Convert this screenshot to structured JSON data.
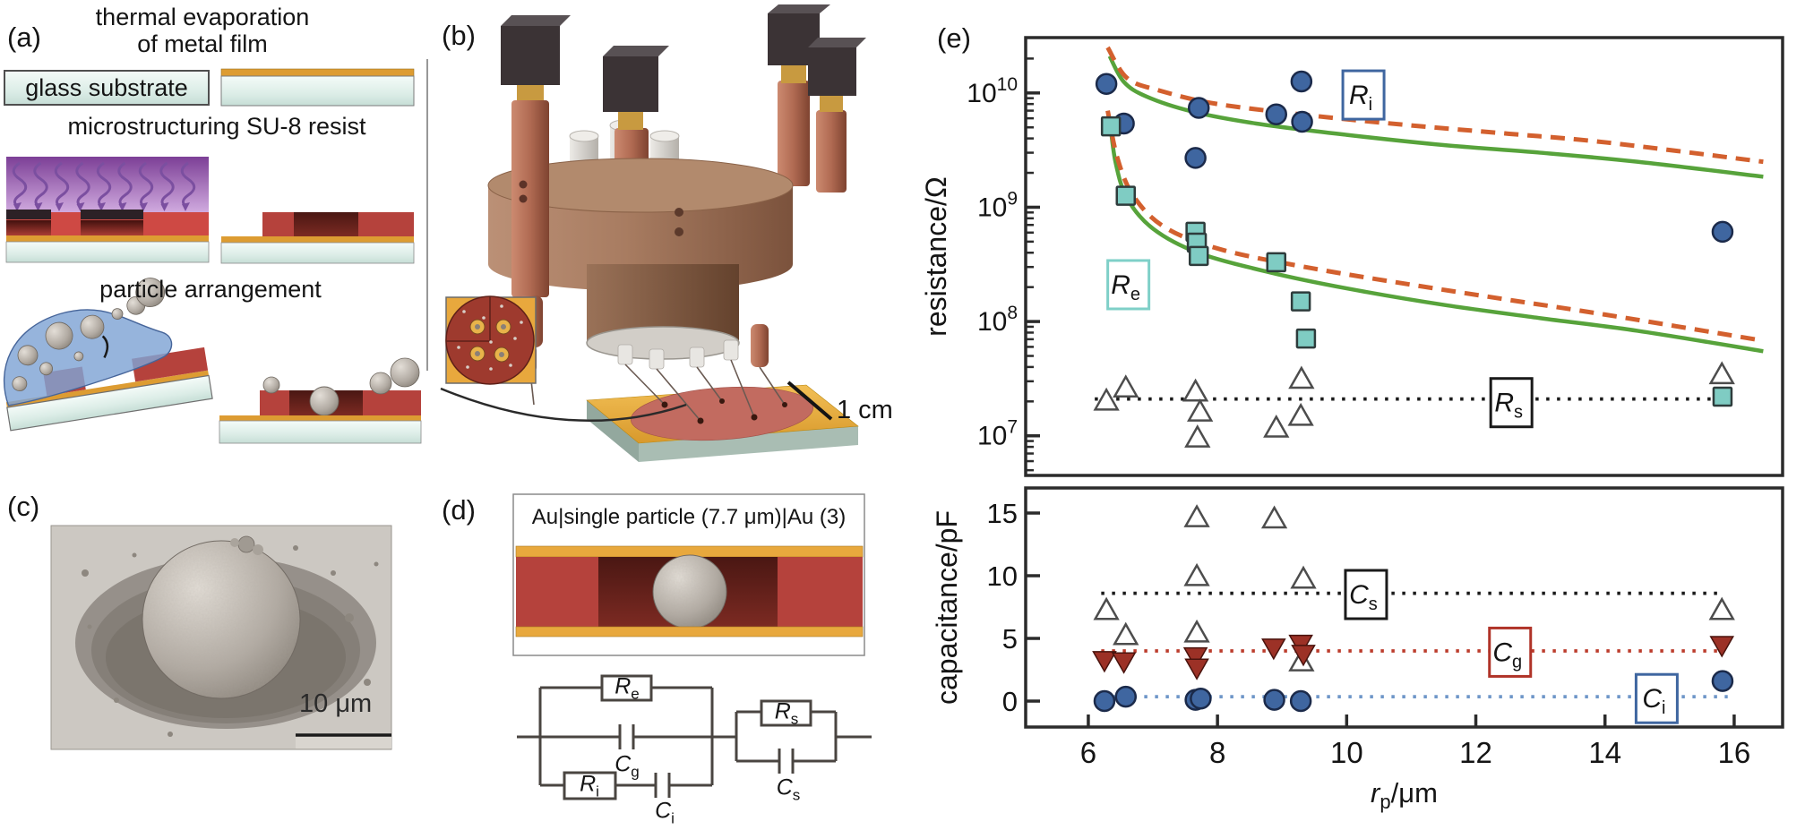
{
  "panels": {
    "a": {
      "label": "(a)",
      "title_line1": "thermal evaporation",
      "title_line2": "of metal film",
      "glass_label": "glass substrate",
      "step2_title": "microstructuring SU-8 resist",
      "step3_title": "particle arrangement"
    },
    "b": {
      "label": "(b)",
      "scale_label": "1 cm"
    },
    "c": {
      "label": "(c)",
      "scale_label": "10 μm"
    },
    "d": {
      "label": "(d)",
      "stack_title": "Au|single particle (7.7 μm)|Au (3)",
      "circuit": {
        "re": {
          "base": "R",
          "sub": "e"
        },
        "cg": {
          "base": "C",
          "sub": "g"
        },
        "ri": {
          "base": "R",
          "sub": "i"
        },
        "ci": {
          "base": "C",
          "sub": "i"
        },
        "rs": {
          "base": "R",
          "sub": "s"
        },
        "cs": {
          "base": "C",
          "sub": "s"
        }
      }
    },
    "e": {
      "label": "(e)"
    }
  },
  "chart_data": [
    {
      "type": "scatter",
      "title": "",
      "ylabel": "resistance/Ω",
      "xlabel": "",
      "x_range": [
        5.03,
        16.75
      ],
      "y_scale": "log",
      "y_range": [
        4500000.0,
        30500000000.0
      ],
      "y_ticks": [
        10000000.0,
        100000000.0,
        1000000000.0,
        10000000000.0
      ],
      "y_tick_exponents": [
        "7",
        "8",
        "9",
        "10"
      ],
      "grid": false,
      "legend_position": "boxed labels inside plot",
      "series": [
        {
          "name": "R_i",
          "marker": "circle",
          "color": "#3f66a0",
          "edge": "#1b2a4a",
          "points": [
            [
              6.28,
              12000000000.0
            ],
            [
              6.55,
              5400000000.0
            ],
            [
              7.71,
              7400000000.0
            ],
            [
              7.66,
              2700000000.0
            ],
            [
              8.91,
              6500000000.0
            ],
            [
              9.3,
              12600000000.0
            ],
            [
              9.31,
              5600000000.0
            ],
            [
              15.82,
              610000000.0
            ]
          ]
        },
        {
          "name": "R_e",
          "marker": "square",
          "color": "#7fccc3",
          "edge": "#2e3c3c",
          "points": [
            [
              6.35,
              5100000000.0
            ],
            [
              6.58,
              1260000000.0
            ],
            [
              7.66,
              610000000.0
            ],
            [
              7.68,
              490000000.0
            ],
            [
              7.71,
              375000000.0
            ],
            [
              8.91,
              330000000.0
            ],
            [
              9.29,
              150000000.0
            ],
            [
              9.37,
              71000000.0
            ],
            [
              15.82,
              22000000.0
            ]
          ]
        },
        {
          "name": "R_s",
          "marker": "triangle-open",
          "color": "#ffffff",
          "edge": "#4d4d4d",
          "points": [
            [
              6.28,
              20000000.0
            ],
            [
              6.58,
              26000000.0
            ],
            [
              7.66,
              24000000.0
            ],
            [
              7.73,
              16000000.0
            ],
            [
              7.69,
              9500000.0
            ],
            [
              8.91,
              11600000.0
            ],
            [
              9.3,
              31000000.0
            ],
            [
              9.29,
              14700000.0
            ],
            [
              15.81,
              34000000.0
            ]
          ]
        }
      ],
      "fit_lines": [
        {
          "series": "R_i",
          "style": "solid",
          "color": "#57a33b",
          "points": [
            [
              6.33,
              21000000000.0
            ],
            [
              6.55,
              12500000000.0
            ],
            [
              6.9,
              9300000000.0
            ],
            [
              7.6,
              6900000000.0
            ],
            [
              8.6,
              5400000000.0
            ],
            [
              10,
              4300000000.0
            ],
            [
              11.5,
              3500000000.0
            ],
            [
              13,
              3000000000.0
            ],
            [
              14.5,
              2500000000.0
            ],
            [
              16.45,
              1850000000.0
            ]
          ]
        },
        {
          "series": "R_i",
          "style": "dashed",
          "color": "#d3602e",
          "points": [
            [
              6.3,
              25000000000.0
            ],
            [
              6.6,
              13500000000.0
            ],
            [
              7.1,
              10500000000.0
            ],
            [
              8,
              8000000000.0
            ],
            [
              9.5,
              6300000000.0
            ],
            [
              11,
              5200000000.0
            ],
            [
              12.5,
              4400000000.0
            ],
            [
              14,
              3700000000.0
            ],
            [
              16.45,
              2500000000.0
            ]
          ]
        },
        {
          "series": "R_e",
          "style": "solid",
          "color": "#57a33b",
          "points": [
            [
              6.33,
              6000000000.0
            ],
            [
              6.42,
              2500000000.0
            ],
            [
              6.6,
              1200000000.0
            ],
            [
              7.0,
              650000000.0
            ],
            [
              7.7,
              400000000.0
            ],
            [
              8.8,
              270000000.0
            ],
            [
              10,
              195000000.0
            ],
            [
              11.5,
              140000000.0
            ],
            [
              13,
              107000000.0
            ],
            [
              14.5,
              83000000.0
            ],
            [
              16.45,
              55000000.0
            ]
          ]
        },
        {
          "series": "R_e",
          "style": "dashed",
          "color": "#d3602e",
          "points": [
            [
              6.3,
              7000000000.0
            ],
            [
              6.45,
              2700000000.0
            ],
            [
              6.7,
              1250000000.0
            ],
            [
              7.2,
              660000000.0
            ],
            [
              8.1,
              420000000.0
            ],
            [
              9.5,
              290000000.0
            ],
            [
              11,
              210000000.0
            ],
            [
              12.5,
              155000000.0
            ],
            [
              14,
              115000000.0
            ],
            [
              16.45,
              68000000.0
            ]
          ]
        },
        {
          "series": "R_s",
          "style": "dotted",
          "color": "#1a1a1a",
          "points": [
            [
              6.1,
              21000000.0
            ],
            [
              15.95,
              21000000.0
            ]
          ]
        }
      ],
      "labels": [
        {
          "base": "R",
          "sub": "i",
          "x": 10.26,
          "y": 9600000000.0,
          "box_color": "#3f66a0"
        },
        {
          "base": "R",
          "sub": "e",
          "x": 6.62,
          "y": 210000000.0,
          "box_color": "#7fd0c8"
        },
        {
          "base": "R",
          "sub": "s",
          "x": 12.55,
          "y": 19500000.0,
          "box_color": "#1a1a1a"
        }
      ]
    },
    {
      "type": "scatter",
      "title": "",
      "ylabel": "capacitance/pF",
      "xlabel_base": "r",
      "xlabel_sub": "p",
      "xlabel_unit": "/μm",
      "x_range": [
        5.03,
        16.75
      ],
      "y_scale": "linear",
      "y_range": [
        -2.07,
        17.0
      ],
      "y_ticks": [
        0,
        5,
        10,
        15
      ],
      "x_ticks": [
        6,
        8,
        10,
        12,
        14,
        16
      ],
      "grid": false,
      "series": [
        {
          "name": "C_s",
          "marker": "triangle-open",
          "color": "#ffffff",
          "edge": "#4d4d4d",
          "points": [
            [
              6.28,
              7.2
            ],
            [
              6.58,
              5.2
            ],
            [
              7.68,
              14.6
            ],
            [
              7.68,
              9.9
            ],
            [
              7.68,
              5.4
            ],
            [
              8.88,
              14.5
            ],
            [
              9.33,
              9.7
            ],
            [
              9.3,
              3.1
            ],
            [
              15.81,
              7.2
            ]
          ]
        },
        {
          "name": "C_g",
          "marker": "triangle-down",
          "color": "#9c3126",
          "edge": "#49130d",
          "points": [
            [
              6.25,
              3.3
            ],
            [
              6.55,
              3.2
            ],
            [
              7.66,
              3.6
            ],
            [
              7.68,
              2.7
            ],
            [
              8.87,
              4.3
            ],
            [
              9.29,
              4.6
            ],
            [
              9.33,
              3.8
            ],
            [
              15.81,
              4.5
            ]
          ]
        },
        {
          "name": "C_i",
          "marker": "circle",
          "color": "#3f66a0",
          "edge": "#1b2a4a",
          "points": [
            [
              6.25,
              0.0
            ],
            [
              6.58,
              0.35
            ],
            [
              7.66,
              0.1
            ],
            [
              7.74,
              0.2
            ],
            [
              8.88,
              0.1
            ],
            [
              9.29,
              0.0
            ],
            [
              15.82,
              1.6
            ]
          ]
        }
      ],
      "fit_lines": [
        {
          "series": "C_s",
          "style": "dotted",
          "color": "#1a1a1a",
          "points": [
            [
              6.2,
              8.6
            ],
            [
              15.85,
              8.6
            ]
          ]
        },
        {
          "series": "C_g",
          "style": "dotted",
          "color": "#bc3c2c",
          "points": [
            [
              6.2,
              4.0
            ],
            [
              15.85,
              4.0
            ]
          ]
        },
        {
          "series": "C_i",
          "style": "dotted",
          "color": "#6e96c8",
          "points": [
            [
              6.2,
              0.35
            ],
            [
              15.9,
              0.35
            ]
          ]
        }
      ],
      "labels": [
        {
          "base": "C",
          "sub": "s",
          "x": 10.3,
          "y": 8.5,
          "box_color": "#1a1a1a"
        },
        {
          "base": "C",
          "sub": "g",
          "x": 12.53,
          "y": 3.9,
          "box_color": "#b03328"
        },
        {
          "base": "C",
          "sub": "i",
          "x": 14.8,
          "y": 0.2,
          "box_color": "#3f66a0"
        }
      ]
    }
  ]
}
